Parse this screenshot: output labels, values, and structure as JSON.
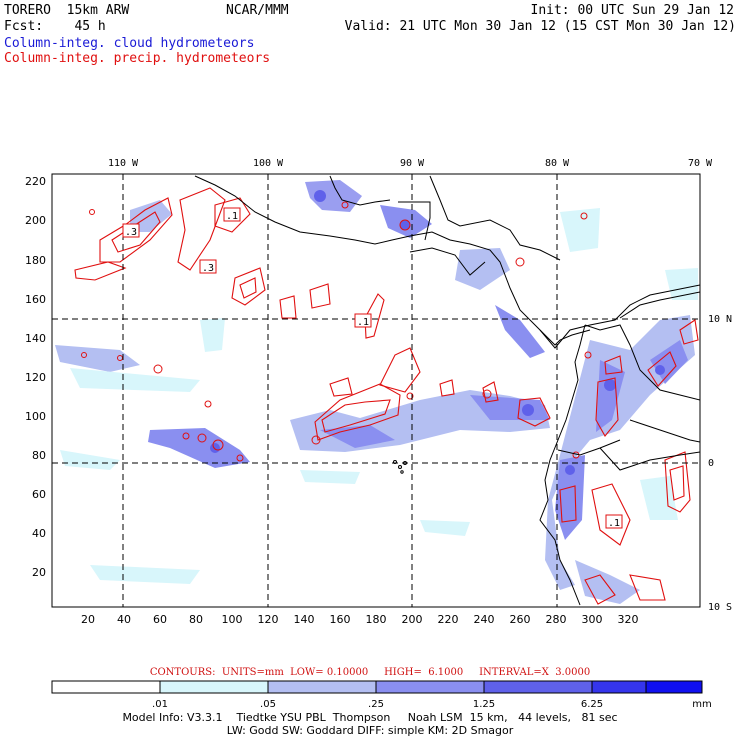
{
  "header": {
    "model": "TORERO  15km ARW",
    "org": "NCAR/MMM",
    "init": "Init: 00 UTC Sun 29 Jan 12",
    "fcst": "Fcst:    45 h",
    "valid": "Valid: 21 UTC Mon 30 Jan 12 (15 CST Mon 30 Jan 12)",
    "field1": "Column-integ. cloud hydrometeors",
    "field2": "Column-integ. precip. hydrometeors"
  },
  "colors": {
    "cloud_field": "#1a1ad6",
    "precip_contour": "#e01010",
    "grid": "#000000"
  },
  "map": {
    "lon_labels": [
      "110 W",
      "100 W",
      "90 W",
      "80 W",
      "70 W"
    ],
    "lat_labels": [
      "10 N",
      "0",
      "10 S"
    ],
    "y_ticks": [
      "220",
      "200",
      "180",
      "160",
      "140",
      "120",
      "100",
      "80",
      "60",
      "40",
      "20"
    ],
    "x_ticks": [
      "20",
      "40",
      "60",
      "80",
      "100",
      "120",
      "140",
      "160",
      "180",
      "200",
      "220",
      "240",
      "260",
      "280",
      "300",
      "320"
    ],
    "contour_labels": [
      ".3",
      ".1",
      ".3",
      ".1",
      ".1"
    ]
  },
  "contour_info": {
    "text": "CONTOURS:  UNITS=mm  LOW= 0.10000     HIGH=  6.1000     INTERVAL=X  3.0000"
  },
  "colorbar": {
    "labels": [
      ".01",
      ".05",
      ".25",
      "1.25",
      "6.25"
    ],
    "unit": "mm",
    "colors": [
      "#ffffff",
      "#d8f6fb",
      "#b4bff2",
      "#8a8ff0",
      "#5f61ea",
      "#3535ec",
      "#1010f0"
    ]
  },
  "footer": {
    "line1": "Model Info: V3.3.1    Tiedtke YSU PBL  Thompson     Noah LSM  15 km,   44 levels,   81 sec",
    "line2": "LW: Godd SW: Goddard DIFF: simple KM: 2D Smagor"
  }
}
